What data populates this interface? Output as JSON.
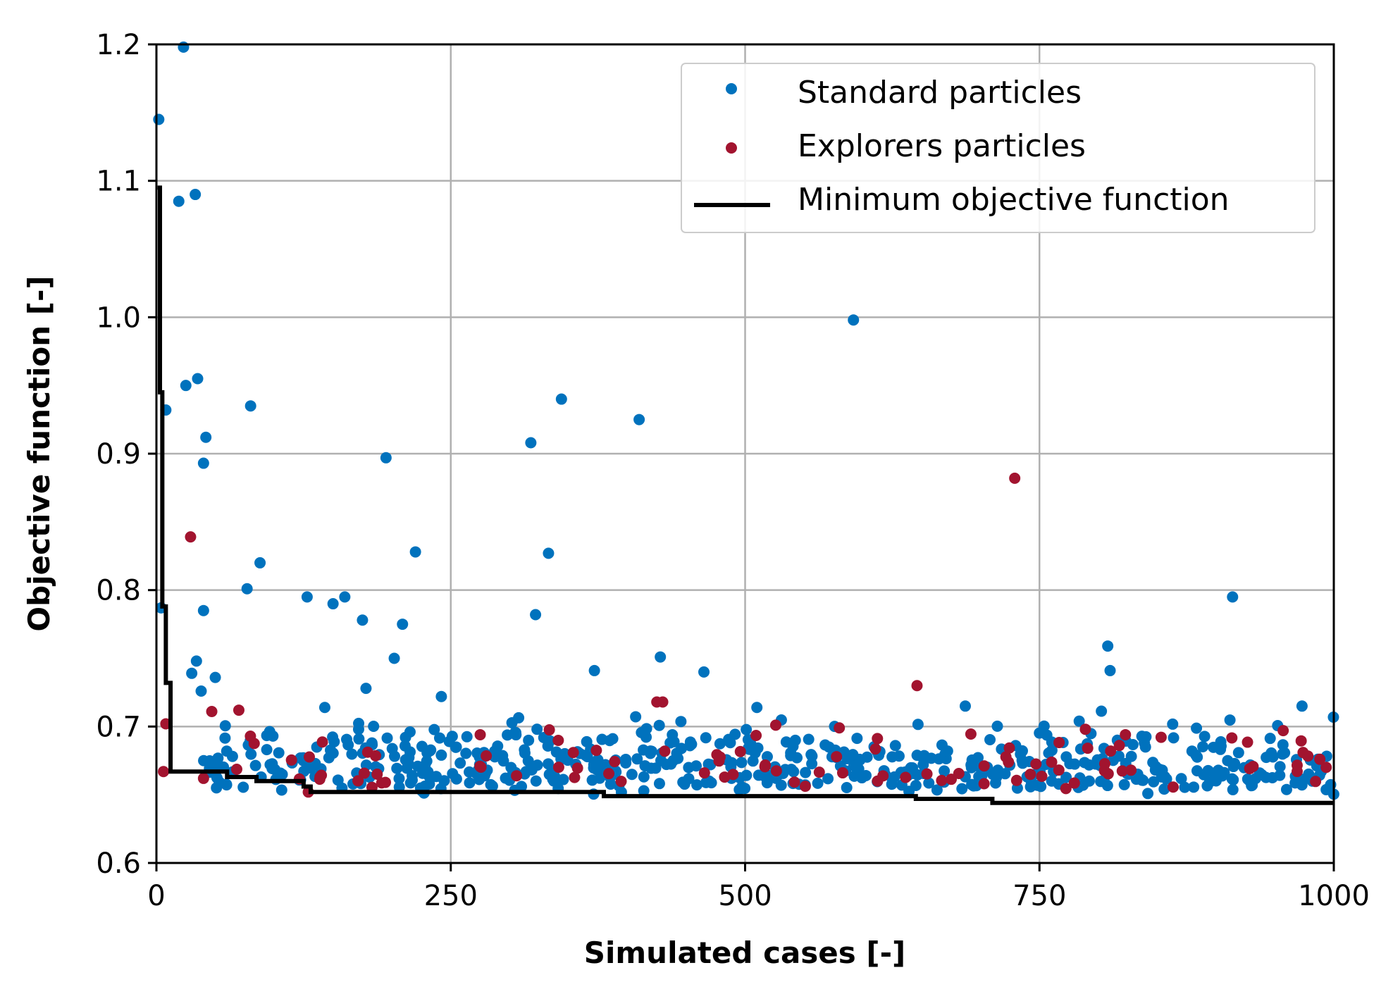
{
  "chart_data": {
    "type": "scatter",
    "xlabel": "Simulated cases [-]",
    "ylabel": "Objective function [-]",
    "xlim": [
      0,
      1000
    ],
    "ylim": [
      0.6,
      1.2
    ],
    "xticks": [
      0,
      250,
      500,
      750,
      1000
    ],
    "xtick_labels": [
      "0",
      "250",
      "500",
      "750",
      "1000"
    ],
    "yticks": [
      0.6,
      0.7,
      0.8,
      0.9,
      1.0,
      1.1,
      1.2
    ],
    "ytick_labels": [
      "0.6",
      "0.7",
      "0.8",
      "0.9",
      "1.0",
      "1.1",
      "1.2"
    ],
    "grid": true,
    "legend_position": "top-right",
    "series": [
      {
        "name": "Standard particles",
        "kind": "scatter",
        "color": "#0072bd",
        "outliers": [
          [
            2,
            1.145
          ],
          [
            23,
            1.198
          ],
          [
            19,
            1.085
          ],
          [
            33,
            1.09
          ],
          [
            8,
            0.932
          ],
          [
            25,
            0.95
          ],
          [
            35,
            0.955
          ],
          [
            42,
            0.912
          ],
          [
            40,
            0.893
          ],
          [
            4,
            0.787
          ],
          [
            40,
            0.785
          ],
          [
            77,
            0.801
          ],
          [
            80,
            0.935
          ],
          [
            88,
            0.82
          ],
          [
            195,
            0.897
          ],
          [
            220,
            0.828
          ],
          [
            209,
            0.775
          ],
          [
            318,
            0.908
          ],
          [
            322,
            0.782
          ],
          [
            333,
            0.827
          ],
          [
            344,
            0.94
          ],
          [
            410,
            0.925
          ],
          [
            592,
            0.998
          ],
          [
            914,
            0.795
          ],
          [
            808,
            0.759
          ],
          [
            810,
            0.741
          ],
          [
            128,
            0.795
          ],
          [
            150,
            0.79
          ],
          [
            160,
            0.795
          ],
          [
            175,
            0.778
          ],
          [
            202,
            0.75
          ],
          [
            30,
            0.739
          ],
          [
            34,
            0.748
          ],
          [
            50,
            0.736
          ],
          [
            38,
            0.726
          ],
          [
            178,
            0.728
          ],
          [
            242,
            0.722
          ],
          [
            372,
            0.741
          ],
          [
            428,
            0.751
          ],
          [
            465,
            0.74
          ],
          [
            973,
            0.715
          ],
          [
            687,
            0.715
          ],
          [
            510,
            0.714
          ],
          [
            143,
            0.714
          ]
        ],
        "dense_region": {
          "x_range": [
            40,
            1000
          ],
          "y_floor": 0.648,
          "y_range": [
            0.65,
            0.705
          ],
          "count": 560
        }
      },
      {
        "name": "Explorers particles",
        "kind": "scatter",
        "color": "#a2142f",
        "outliers": [
          [
            29,
            0.839
          ],
          [
            729,
            0.882
          ],
          [
            646,
            0.73
          ],
          [
            430,
            0.718
          ],
          [
            425,
            0.718
          ],
          [
            8,
            0.702
          ],
          [
            6,
            0.667
          ],
          [
            47,
            0.711
          ],
          [
            70,
            0.712
          ],
          [
            40,
            0.662
          ],
          [
            129,
            0.652
          ],
          [
            526,
            0.701
          ],
          [
            957,
            0.697
          ],
          [
            823,
            0.694
          ],
          [
            275,
            0.694
          ],
          [
            580,
            0.699
          ],
          [
            789,
            0.698
          ]
        ],
        "dense_region": {
          "x_range": [
            60,
            1000
          ],
          "y_floor": 0.652,
          "y_range": [
            0.652,
            0.695
          ],
          "count": 95
        }
      },
      {
        "name": "Minimum objective function",
        "kind": "step",
        "color": "#000000",
        "points": [
          [
            1,
            1.095
          ],
          [
            3,
            0.945
          ],
          [
            5,
            0.788
          ],
          [
            8,
            0.732
          ],
          [
            12,
            0.667
          ],
          [
            60,
            0.663
          ],
          [
            85,
            0.66
          ],
          [
            125,
            0.656
          ],
          [
            131,
            0.652
          ],
          [
            380,
            0.649
          ],
          [
            645,
            0.647
          ],
          [
            710,
            0.644
          ],
          [
            1000,
            0.644
          ]
        ]
      }
    ]
  }
}
